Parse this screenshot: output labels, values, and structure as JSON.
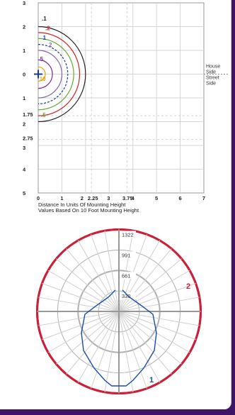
{
  "chart_data": [
    {
      "type": "isofootcandle",
      "xlabel": "Distance In Units Of Mounting Height",
      "note": "Values Based On 10 Foot Mounting Height",
      "x_ticks": [
        "0",
        "1",
        "2",
        "2.25",
        "3",
        "3.75",
        "4",
        "5",
        "6",
        "7"
      ],
      "y_ticks_top": [
        "3",
        "2",
        "1",
        "0"
      ],
      "y_ticks_bottom": [
        "1",
        "1.75",
        "2",
        "2.75",
        "3",
        "4",
        "5"
      ],
      "xlim": [
        0,
        7
      ],
      "ylim": [
        -5,
        3
      ],
      "side_labels": [
        "House",
        "Side",
        "Street",
        "Side"
      ],
      "contours": [
        {
          "label": ".1",
          "color": "#222222",
          "radius": 2.0
        },
        {
          "label": ".2",
          "color": "#cc2222",
          "radius": 1.75
        },
        {
          "label": ".5",
          "color": "#66aa33",
          "radius": 1.5
        },
        {
          "label": "1",
          "color": "#1a3aa0",
          "radius": 1.25
        },
        {
          "label": "2",
          "color": "#8866aa",
          "radius": 1.0
        },
        {
          "label": "5",
          "color": "#7a2a9a",
          "radius": 0.6
        },
        {
          "label": "10",
          "color": "#f0a010",
          "radius": 0.3
        }
      ],
      "contour_labels_shown": [
        ".1",
        ".2",
        "1",
        "2",
        "5",
        "10",
        ".5"
      ]
    },
    {
      "type": "polar",
      "ring_labels": [
        "1322",
        "991",
        "661",
        "330"
      ],
      "ring_values": [
        1322,
        991,
        661,
        330
      ],
      "rmax": 1322,
      "series": [
        {
          "name": "1",
          "color": "#1a4cb0",
          "angles": [
            0,
            10,
            20,
            30,
            40,
            45,
            50,
            60
          ],
          "values": [
            300,
            320,
            360,
            430,
            560,
            660,
            780,
            1000
          ]
        },
        {
          "name": "2",
          "color": "#cc1f3a",
          "angles": [
            0,
            90,
            180
          ],
          "values": [
            1322,
            1322,
            1322
          ]
        }
      ]
    }
  ],
  "colors": {
    "frame": "#3d1466",
    "grid": "#d5d5d5",
    "axis": "#999999"
  }
}
